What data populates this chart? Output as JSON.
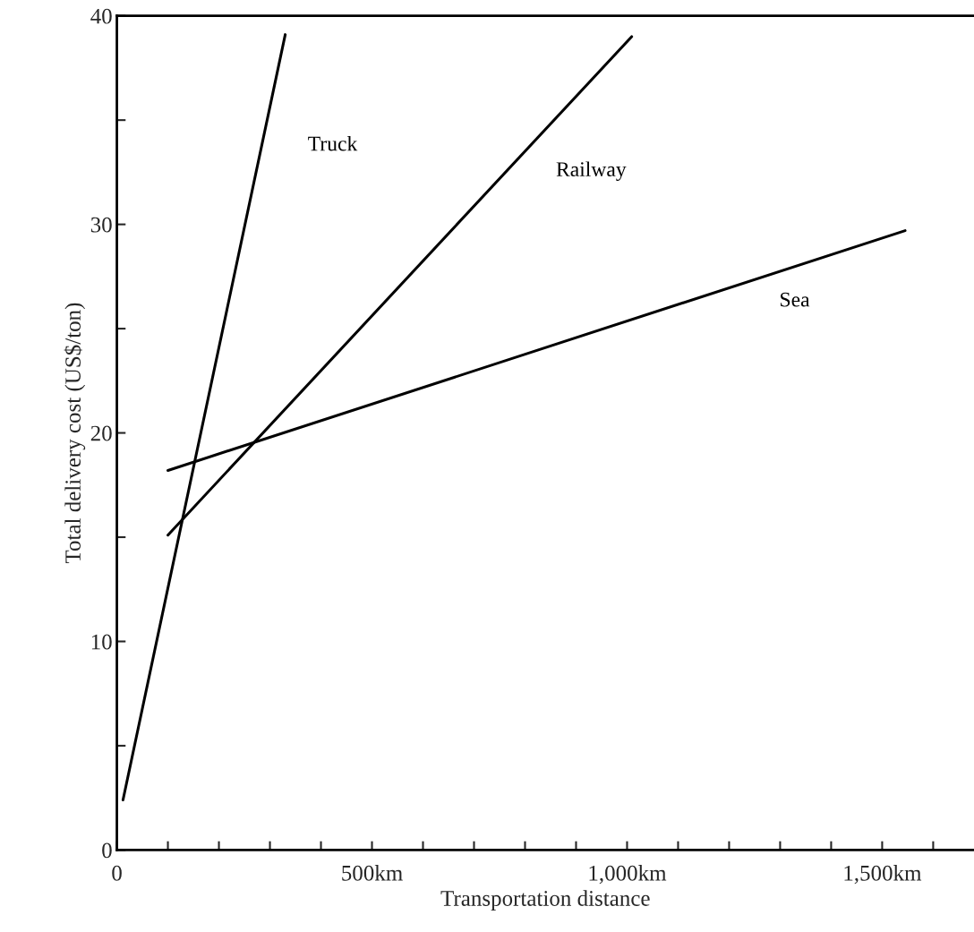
{
  "chart_data": {
    "type": "line",
    "xlabel": "Transportation distance",
    "ylabel": "Total delivery cost (US$/ton)",
    "series": [
      {
        "name": "Truck",
        "color": "#000000",
        "x": [
          12,
          330
        ],
        "values": [
          2.4,
          39.1
        ]
      },
      {
        "name": "Railway",
        "color": "#000000",
        "x": [
          100,
          1009
        ],
        "values": [
          15.1,
          39.0
        ]
      },
      {
        "name": "Sea",
        "color": "#000000",
        "x": [
          100,
          1545
        ],
        "values": [
          18.2,
          29.7
        ]
      }
    ],
    "xlim": [
      0,
      1680
    ],
    "ylim": [
      0,
      40
    ],
    "xticks": [
      0,
      {
        "value": 100,
        "label": null
      },
      {
        "value": 200,
        "label": null
      },
      {
        "value": 300,
        "label": null
      },
      {
        "value": 400,
        "label": null
      },
      {
        "value": 500,
        "label": "500km"
      },
      {
        "value": 600,
        "label": null
      },
      {
        "value": 700,
        "label": null
      },
      {
        "value": 800,
        "label": null
      },
      {
        "value": 900,
        "label": null
      },
      {
        "value": 1000,
        "label": "1,000km"
      },
      {
        "value": 1100,
        "label": null
      },
      {
        "value": 1200,
        "label": null
      },
      {
        "value": 1300,
        "label": null
      },
      {
        "value": 1400,
        "label": null
      },
      {
        "value": 1500,
        "label": "1,500km"
      },
      {
        "value": 1600,
        "label": null
      }
    ],
    "yticks": [
      0,
      {
        "value": 5,
        "label": null
      },
      10,
      {
        "value": 15,
        "label": null
      },
      20,
      {
        "value": 25,
        "label": null
      },
      30,
      {
        "value": 35,
        "label": null
      },
      40
    ],
    "grid": false,
    "legend": false,
    "marker": "none",
    "line_style": "solid"
  }
}
